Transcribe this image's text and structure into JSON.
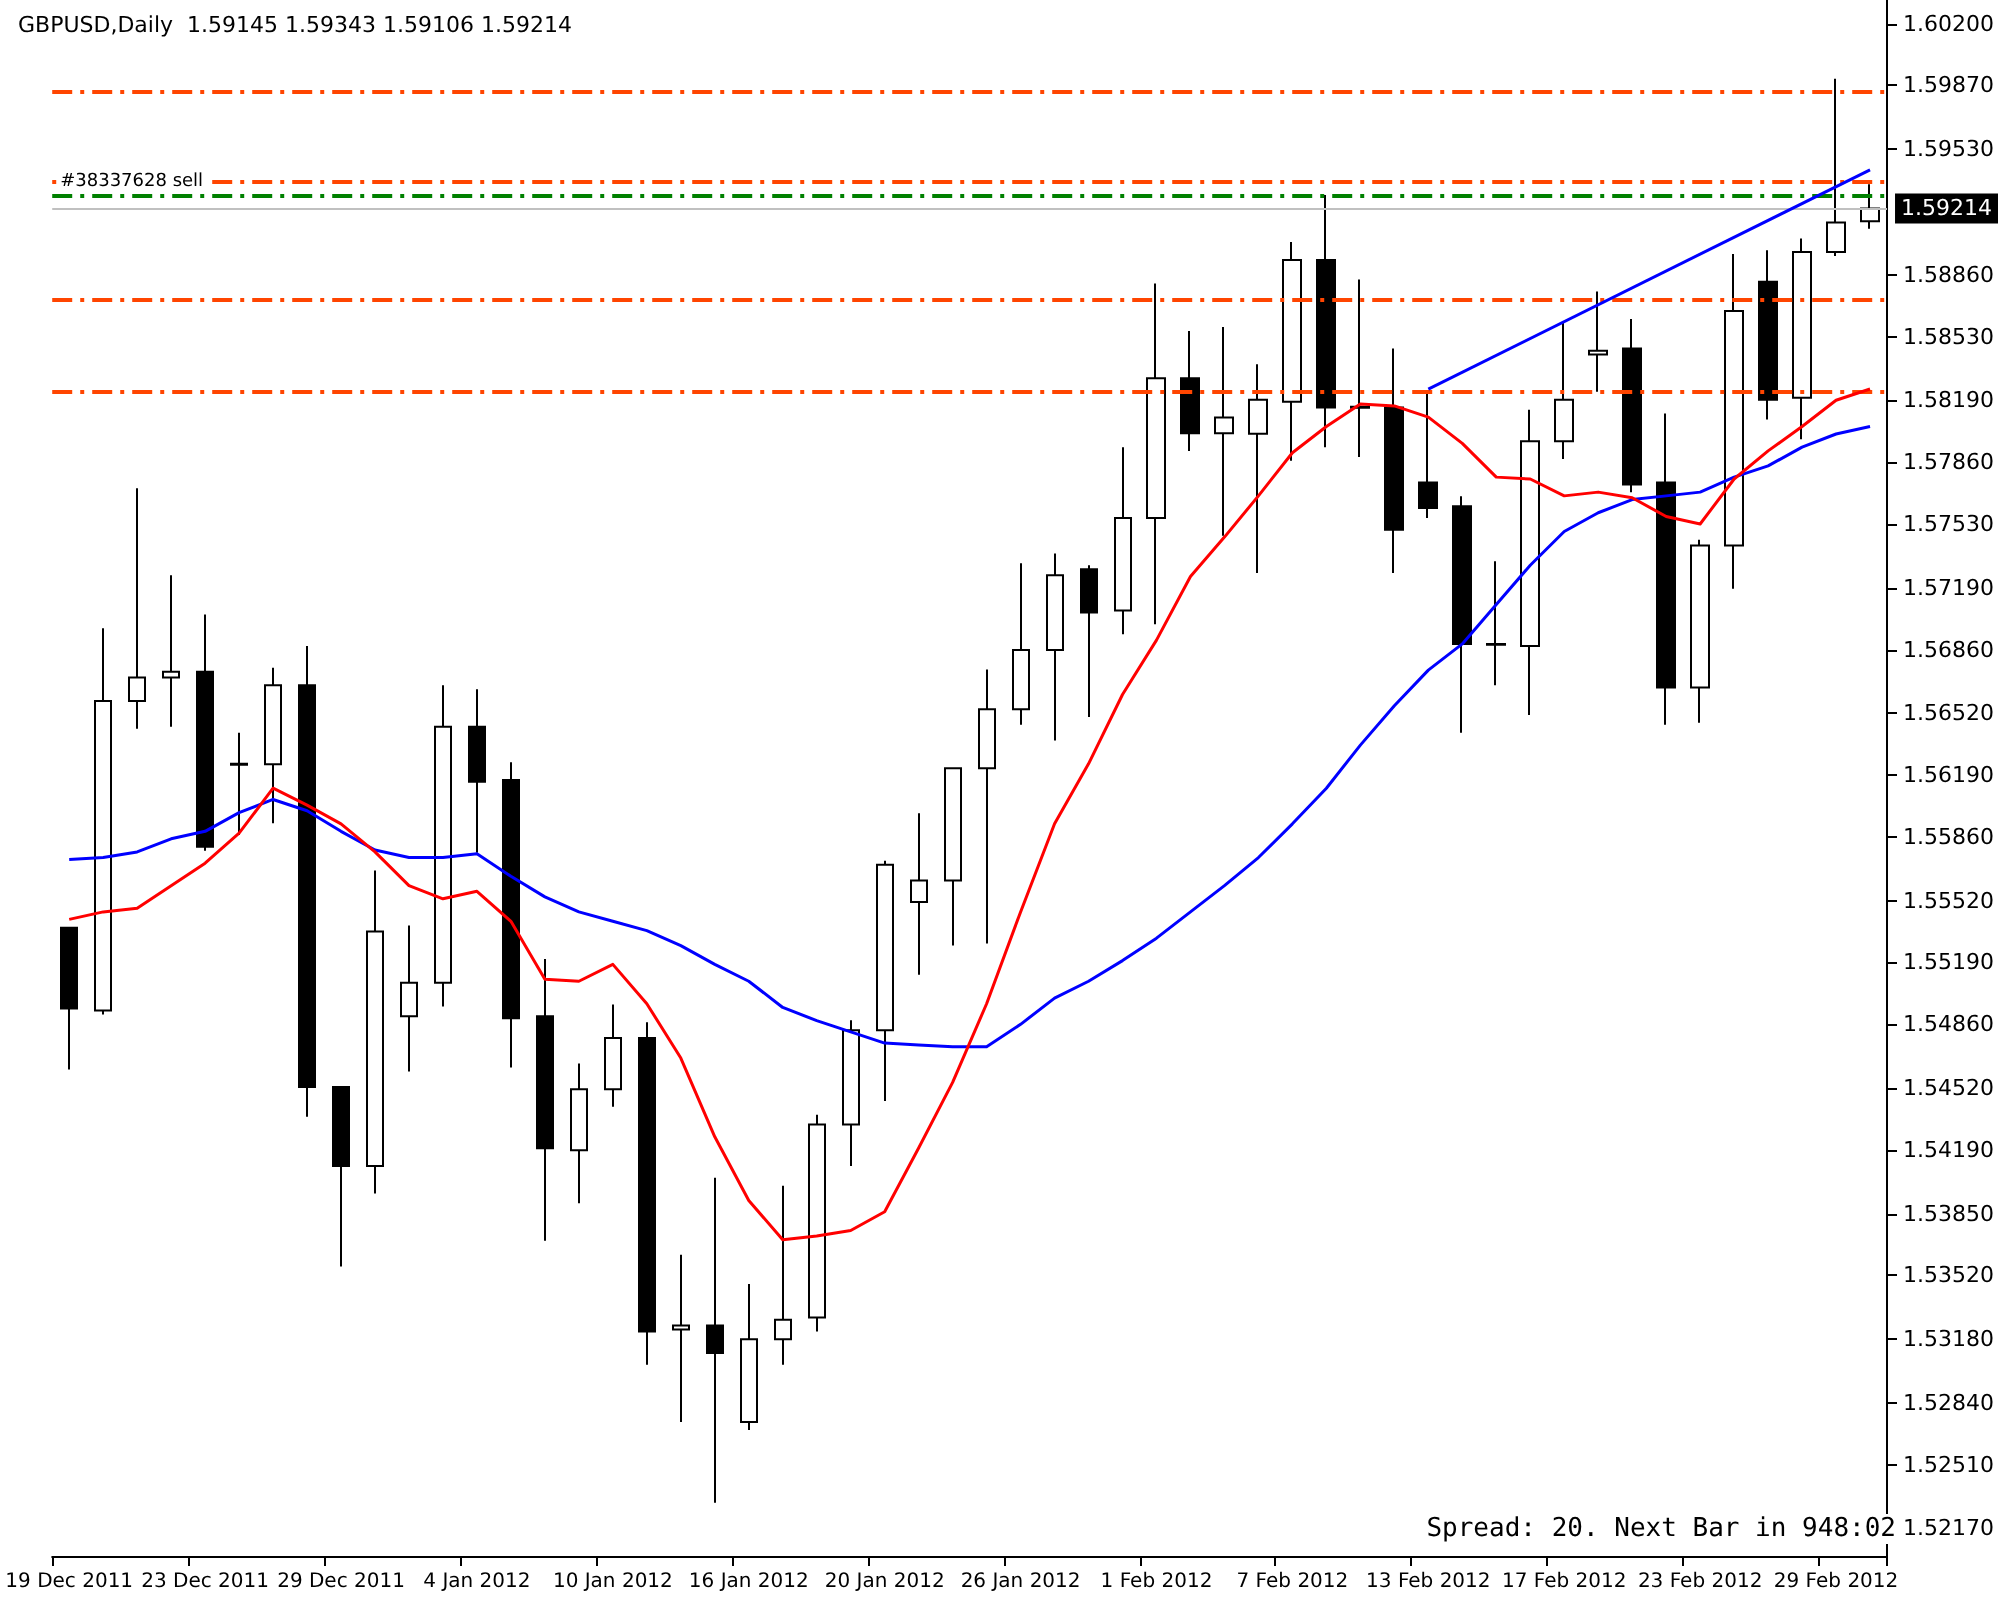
{
  "chart_data": {
    "type": "candlestick",
    "title": "GBPUSD,Daily  1.59145 1.59343 1.59106 1.59214",
    "annotations": [
      "Spread: 20. Next Bar in 948:02"
    ],
    "categories": [
      "19 Dec 2011",
      null,
      null,
      null,
      "23 Dec 2011",
      null,
      null,
      null,
      "29 Dec 2011",
      null,
      null,
      null,
      "4 Jan 2012",
      null,
      null,
      null,
      "10 Jan 2012",
      null,
      null,
      null,
      "16 Jan 2012",
      null,
      null,
      null,
      "20 Jan 2012",
      null,
      null,
      null,
      "26 Jan 2012",
      null,
      null,
      null,
      "1 Feb 2012",
      null,
      null,
      null,
      "7 Feb 2012",
      null,
      null,
      null,
      "13 Feb 2012",
      null,
      null,
      null,
      "17 Feb 2012",
      null,
      null,
      null,
      "23 Feb 2012",
      null,
      null,
      null,
      "29 Feb 2012",
      null
    ],
    "series": [
      {
        "type": "line",
        "color": "#0000ff",
        "values": [
          1.5574,
          1.5575,
          1.5578,
          1.5585,
          1.5589,
          1.5599,
          1.5606,
          1.56,
          1.5589,
          1.5579,
          1.5575,
          1.5575,
          1.5577,
          1.5565,
          1.5554,
          1.5546,
          1.5541,
          1.5536,
          1.5528,
          1.5518,
          1.5509,
          1.5495,
          1.5488,
          1.5482,
          1.5476,
          1.5475,
          1.5474,
          1.5474,
          1.5486,
          1.55,
          1.5509,
          1.552,
          1.5532,
          1.5546,
          1.556,
          1.5575,
          1.5593,
          1.5612,
          1.5635,
          1.5656,
          1.5675,
          1.5689,
          1.571,
          1.5731,
          1.5749,
          1.5759,
          1.5766,
          1.5768,
          1.577,
          1.5778,
          1.5784,
          1.5794,
          1.5801,
          1.5805
        ]
      },
      {
        "type": "line",
        "color": "#ff0000",
        "values": [
          1.5542,
          1.5546,
          1.5548,
          1.556,
          1.5572,
          1.5588,
          1.5612,
          1.5603,
          1.5593,
          1.5578,
          1.556,
          1.5553,
          1.5557,
          1.5541,
          1.551,
          1.5509,
          1.5518,
          1.5497,
          1.5468,
          1.5426,
          1.5392,
          1.5371,
          1.5373,
          1.5376,
          1.5386,
          1.542,
          1.5455,
          1.5497,
          1.5546,
          1.5593,
          1.5625,
          1.5662,
          1.5691,
          1.5725,
          1.5746,
          1.5768,
          1.5791,
          1.5805,
          1.5817,
          1.5816,
          1.581,
          1.5796,
          1.5778,
          1.5777,
          1.5768,
          1.577,
          1.5767,
          1.5757,
          1.5753,
          1.5777,
          1.5792,
          1.5805,
          1.5819,
          1.5825
        ]
      },
      {
        "type": "line",
        "color": "#0000ff",
        "values": [
          null,
          null,
          null,
          null,
          null,
          null,
          null,
          null,
          null,
          null,
          null,
          null,
          null,
          null,
          null,
          null,
          null,
          null,
          null,
          null,
          null,
          null,
          null,
          null,
          null,
          null,
          null,
          null,
          null,
          null,
          null,
          null,
          null,
          null,
          null,
          null,
          null,
          null,
          null,
          null,
          1.5825,
          null,
          null,
          null,
          null,
          null,
          null,
          null,
          null,
          null,
          null,
          null,
          null,
          1.5942
        ]
      },
      {
        "color": "#000000",
        "ohlc": [
          [
            1.55376,
            1.55376,
            1.54619,
            1.54945
          ],
          [
            1.54934,
            1.56973,
            1.54913,
            1.56585
          ],
          [
            1.56585,
            1.5772,
            1.56437,
            1.56711
          ],
          [
            1.56711,
            1.57257,
            1.56448,
            1.56742
          ],
          [
            1.56742,
            1.57047,
            1.55786,
            1.55807
          ],
          [
            1.5625,
            1.56416,
            1.5587,
            1.56245
          ],
          [
            1.56248,
            1.56763,
            1.55933,
            1.56669
          ],
          [
            1.56669,
            1.56879,
            1.54367,
            1.54525
          ],
          [
            1.54525,
            1.54525,
            1.53568,
            1.54104
          ],
          [
            1.54104,
            1.55681,
            1.53957,
            1.55355
          ],
          [
            1.54903,
            1.55387,
            1.54609,
            1.55082
          ],
          [
            1.55082,
            1.56669,
            1.54955,
            1.56448
          ],
          [
            1.56448,
            1.56648,
            1.55775,
            1.56154
          ],
          [
            1.56164,
            1.56259,
            1.5463,
            1.54893
          ],
          [
            1.54903,
            1.55208,
            1.53705,
            1.54199
          ],
          [
            1.54188,
            1.54651,
            1.53905,
            1.54514
          ],
          [
            1.54514,
            1.54966,
            1.5442,
            1.54787
          ],
          [
            1.54787,
            1.54871,
            1.53043,
            1.53221
          ],
          [
            1.53232,
            1.53631,
            1.52738,
            1.53253
          ],
          [
            1.53253,
            1.54041,
            1.52307,
            1.53106
          ],
          [
            1.52738,
            1.53474,
            1.52696,
            1.53179
          ],
          [
            1.53179,
            1.53999,
            1.53043,
            1.53284
          ],
          [
            1.53295,
            1.54377,
            1.53221,
            1.54325
          ],
          [
            1.54325,
            1.54882,
            1.54104,
            1.54829
          ],
          [
            1.54829,
            1.55733,
            1.54451,
            1.55712
          ],
          [
            1.55513,
            1.55986,
            1.55124,
            1.55628
          ],
          [
            1.55628,
            1.56227,
            1.55281,
            1.56227
          ],
          [
            1.56227,
            1.56753,
            1.55292,
            1.56542
          ],
          [
            1.56542,
            1.5732,
            1.56458,
            1.56858
          ],
          [
            1.56858,
            1.57373,
            1.56374,
            1.57257
          ],
          [
            1.57289,
            1.5731,
            1.565,
            1.57058
          ],
          [
            1.57068,
            1.5794,
            1.56942,
            1.57562
          ],
          [
            1.57562,
            1.58813,
            1.56995,
            1.58308
          ],
          [
            1.58308,
            1.5856,
            1.57919,
            1.58014
          ],
          [
            1.58014,
            1.58581,
            1.57467,
            1.58098
          ],
          [
            1.58011,
            1.58382,
            1.57268,
            1.58193
          ],
          [
            1.58182,
            1.59034,
            1.57867,
            1.58939
          ],
          [
            1.58939,
            1.59286,
            1.5794,
            1.58151
          ],
          [
            1.58155,
            1.58834,
            1.57888,
            1.5815
          ],
          [
            1.58151,
            1.58466,
            1.57268,
            1.57499
          ],
          [
            1.57751,
            1.58245,
            1.57562,
            1.57615
          ],
          [
            1.57625,
            1.57678,
            1.56416,
            1.56889
          ],
          [
            1.5689,
            1.57331,
            1.56669,
            1.56885
          ],
          [
            1.56879,
            1.5814,
            1.56511,
            1.57972
          ],
          [
            1.57972,
            1.58602,
            1.57877,
            1.58193
          ],
          [
            1.58434,
            1.58771,
            1.58235,
            1.58455
          ],
          [
            1.58466,
            1.58624,
            1.57699,
            1.57741
          ],
          [
            1.57751,
            1.58119,
            1.56458,
            1.56658
          ],
          [
            1.56658,
            1.57446,
            1.56469,
            1.57415
          ],
          [
            1.57415,
            1.5897,
            1.57184,
            1.58666
          ],
          [
            1.58823,
            1.58991,
            1.58087,
            1.58193
          ],
          [
            1.58203,
            1.59054,
            1.57982,
            1.58981
          ],
          [
            1.58981,
            1.59906,
            1.5896,
            1.59139
          ],
          [
            1.59145,
            1.59343,
            1.59106,
            1.59214
          ]
        ]
      }
    ],
    "ref_lines": [
      {
        "axis": "y",
        "value": 1.59843,
        "color": "#ff4500",
        "line_style": "dashed"
      },
      {
        "axis": "y",
        "value": 1.59359,
        "color": "#ff4500",
        "line_style": "dashed"
      },
      {
        "axis": "y",
        "value": 1.59286,
        "label": "#38337628 sell",
        "color": "#008000",
        "line_style": "dashed"
      },
      {
        "axis": "y",
        "value": 1.59214,
        "label": "1.59214",
        "color": "#c0c0c0",
        "line_style": "solid"
      },
      {
        "axis": "y",
        "value": 1.58729,
        "color": "#ff4500",
        "line_style": "dashed"
      },
      {
        "axis": "y",
        "value": 1.58235,
        "color": "#ff4500",
        "line_style": "dashed"
      }
    ],
    "ylim": [
      1.52023,
      1.60326
    ],
    "yticks": [
      {
        "value": 1.602,
        "label": "1.60200"
      },
      {
        "value": 1.5987,
        "label": "1.59870"
      },
      {
        "value": 1.5953,
        "label": "1.59530"
      },
      {
        "value": 1.5886,
        "label": "1.58860"
      },
      {
        "value": 1.5853,
        "label": "1.58530"
      },
      {
        "value": 1.5819,
        "label": "1.58190"
      },
      {
        "value": 1.5786,
        "label": "1.57860"
      },
      {
        "value": 1.5753,
        "label": "1.57530"
      },
      {
        "value": 1.5719,
        "label": "1.57190"
      },
      {
        "value": 1.5686,
        "label": "1.56860"
      },
      {
        "value": 1.5652,
        "label": "1.56520"
      },
      {
        "value": 1.5619,
        "label": "1.56190"
      },
      {
        "value": 1.5586,
        "label": "1.55860"
      },
      {
        "value": 1.5552,
        "label": "1.55520"
      },
      {
        "value": 1.5519,
        "label": "1.55190"
      },
      {
        "value": 1.5486,
        "label": "1.54860"
      },
      {
        "value": 1.5452,
        "label": "1.54520"
      },
      {
        "value": 1.5419,
        "label": "1.54190"
      },
      {
        "value": 1.5385,
        "label": "1.53850"
      },
      {
        "value": 1.5352,
        "label": "1.53520"
      },
      {
        "value": 1.5318,
        "label": "1.53180"
      },
      {
        "value": 1.5284,
        "label": "1.52840"
      },
      {
        "value": 1.5251,
        "label": "1.52510"
      },
      {
        "value": 1.5217,
        "label": "1.52170"
      }
    ],
    "grid": false,
    "marker": "none"
  }
}
